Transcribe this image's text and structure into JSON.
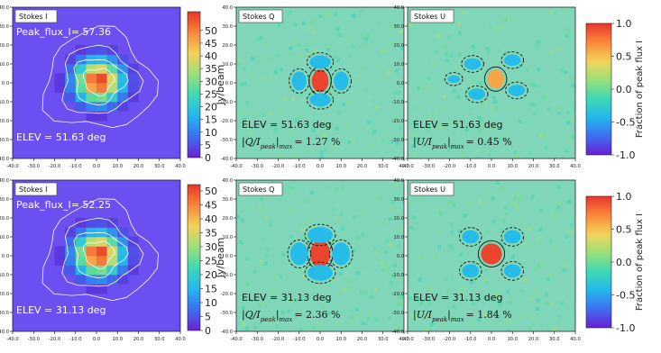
{
  "chart_data": [
    {
      "type": "heatmap",
      "panel": "Stokes I",
      "row": 1,
      "label": "Stokes I",
      "peak_label": "Peak_flux_I= 57.36",
      "elev_label": "ELEV = 51.63 deg",
      "peak_flux": 57.36,
      "elevation_deg": 51.63,
      "xlim": [
        -40,
        40
      ],
      "ylim": [
        -40,
        40
      ],
      "x_ticks": [
        "-40.0",
        "-30.0",
        "-20.0",
        "-10.0",
        "0.0",
        "10.0",
        "20.0",
        "30.0",
        "40.0"
      ],
      "y_ticks": [
        "40.0",
        "30.0",
        "20.0",
        "10.0",
        "0.0",
        "-10.0",
        "-20.0",
        "-30.0",
        "-40.0"
      ],
      "colorbar": {
        "ticks": [
          "50",
          "45",
          "40",
          "35",
          "30",
          "25",
          "20",
          "15",
          "10",
          "5",
          "0"
        ],
        "label": "Jy/beam",
        "range": [
          0,
          57.36
        ]
      }
    },
    {
      "type": "heatmap",
      "panel": "Stokes Q",
      "row": 1,
      "label": "Stokes Q",
      "elev_label": "ELEV = 51.63 deg",
      "ratio_prefix": "|Q/I",
      "ratio_sub": "peak",
      "ratio_mid": "|",
      "ratio_sub2": "max",
      "ratio_value": "= 1.27 %",
      "max_ratio_percent": 1.27,
      "xlim": [
        -40,
        40
      ],
      "ylim": [
        -40,
        40
      ],
      "x_ticks": [
        "-40.0",
        "-30.0",
        "-20.0",
        "-10.0",
        "0.0",
        "10.0",
        "20.0",
        "30.0",
        "40.0"
      ],
      "y_ticks": [
        "40.0",
        "30.0",
        "20.0",
        "10.0",
        "0.0",
        "-10.0",
        "-20.0",
        "-30.0",
        "-40.0"
      ]
    },
    {
      "type": "heatmap",
      "panel": "Stokes U",
      "row": 1,
      "label": "Stokes U",
      "elev_label": "ELEV = 51.63 deg",
      "ratio_prefix": "|U/I",
      "ratio_sub": "peak",
      "ratio_mid": "|",
      "ratio_sub2": "max",
      "ratio_value": "= 0.45 %",
      "max_ratio_percent": 0.45,
      "xlim": [
        -40,
        40
      ],
      "ylim": [
        -40,
        40
      ],
      "x_ticks": [
        "-40.0",
        "-30.0",
        "-20.0",
        "-10.0",
        "0.0",
        "10.0",
        "20.0",
        "30.0",
        "40.0"
      ],
      "y_ticks": [
        "40.0",
        "30.0",
        "20.0",
        "10.0",
        "0.0",
        "-10.0",
        "-20.0",
        "-30.0",
        "-40.0"
      ],
      "colorbar": {
        "ticks": [
          "1.0",
          "0.5",
          "0.0",
          "-0.5",
          "-1.0"
        ],
        "label": "Fraction of peak flux I",
        "range": [
          -1,
          1
        ]
      }
    },
    {
      "type": "heatmap",
      "panel": "Stokes I",
      "row": 2,
      "label": "Stokes I",
      "peak_label": "Peak_flux_I= 52.25",
      "elev_label": "ELEV = 31.13 deg",
      "peak_flux": 52.25,
      "elevation_deg": 31.13,
      "xlim": [
        -40,
        40
      ],
      "ylim": [
        -40,
        40
      ],
      "x_ticks": [
        "-40.0",
        "-30.0",
        "-20.0",
        "-10.0",
        "0.0",
        "10.0",
        "20.0",
        "30.0",
        "40.0"
      ],
      "y_ticks": [
        "40.0",
        "30.0",
        "20.0",
        "10.0",
        "0.0",
        "-10.0",
        "-20.0",
        "-30.0",
        "-40.0"
      ],
      "colorbar": {
        "ticks": [
          "50",
          "45",
          "40",
          "35",
          "30",
          "25",
          "20",
          "15",
          "10",
          "5",
          "0"
        ],
        "label": "Jy/beam",
        "range": [
          0,
          52.25
        ]
      }
    },
    {
      "type": "heatmap",
      "panel": "Stokes Q",
      "row": 2,
      "label": "Stokes Q",
      "elev_label": "ELEV = 31.13 deg",
      "ratio_prefix": "|Q/I",
      "ratio_sub": "peak",
      "ratio_mid": "|",
      "ratio_sub2": "max",
      "ratio_value": "= 2.36 %",
      "max_ratio_percent": 2.36,
      "xlim": [
        -40,
        40
      ],
      "ylim": [
        -40,
        40
      ],
      "x_ticks": [
        "-40.0",
        "-30.0",
        "-20.0",
        "-10.0",
        "0.0",
        "10.0",
        "20.0",
        "30.0",
        "40.0"
      ],
      "y_ticks": [
        "40.0",
        "30.0",
        "20.0",
        "10.0",
        "0.0",
        "-10.0",
        "-20.0",
        "-30.0",
        "-40.0"
      ]
    },
    {
      "type": "heatmap",
      "panel": "Stokes U",
      "row": 2,
      "label": "Stokes U",
      "elev_label": "ELEV = 31.13 deg",
      "ratio_prefix": "|U/I",
      "ratio_sub": "peak",
      "ratio_mid": "|",
      "ratio_sub2": "max",
      "ratio_value": "= 1.84 %",
      "max_ratio_percent": 1.84,
      "xlim": [
        -40,
        40
      ],
      "ylim": [
        -40,
        40
      ],
      "x_ticks": [
        "-40.0",
        "-30.0",
        "-20.0",
        "-10.0",
        "0.0",
        "10.0",
        "20.0",
        "30.0",
        "40.0"
      ],
      "y_ticks": [
        "40.0",
        "30.0",
        "20.0",
        "10.0",
        "0.0",
        "-10.0",
        "-20.0",
        "-30.0",
        "-40.0"
      ],
      "colorbar": {
        "ticks": [
          "1.0",
          "0.5",
          "0.0",
          "-0.5",
          "-1.0"
        ],
        "label": "Fraction of peak flux I",
        "range": [
          -1,
          1
        ]
      }
    }
  ],
  "colors": {
    "colormap": [
      "#6a1fd6",
      "#3d6fef",
      "#23b8ee",
      "#3fd9b4",
      "#9be07a",
      "#f4d25a",
      "#f8873a",
      "#e8352a"
    ],
    "background_I": "#6b4ff0",
    "background_QU": "#7fd6b8",
    "contour_I": "#ffffff",
    "contour_QU": "#111111"
  }
}
